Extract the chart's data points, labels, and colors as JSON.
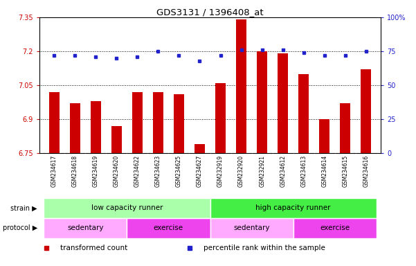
{
  "title": "GDS3131 / 1396408_at",
  "samples": [
    "GSM234617",
    "GSM234618",
    "GSM234619",
    "GSM234620",
    "GSM234622",
    "GSM234623",
    "GSM234625",
    "GSM234627",
    "GSM232919",
    "GSM232920",
    "GSM232921",
    "GSM234612",
    "GSM234613",
    "GSM234614",
    "GSM234615",
    "GSM234616"
  ],
  "bar_values": [
    7.02,
    6.97,
    6.98,
    6.87,
    7.02,
    7.02,
    7.01,
    6.79,
    7.06,
    7.34,
    7.2,
    7.19,
    7.1,
    6.9,
    6.97,
    7.12
  ],
  "dot_values": [
    72,
    72,
    71,
    70,
    71,
    75,
    72,
    68,
    72,
    76,
    76,
    76,
    74,
    72,
    72,
    75
  ],
  "bar_color": "#cc0000",
  "dot_color": "#2222cc",
  "ylim_left": [
    6.75,
    7.35
  ],
  "ylim_right": [
    0,
    100
  ],
  "yticks_left": [
    6.75,
    6.9,
    7.05,
    7.2,
    7.35
  ],
  "yticks_right": [
    0,
    25,
    50,
    75,
    100
  ],
  "ytick_labels_left": [
    "6.75",
    "6.9",
    "7.05",
    "7.2",
    "7.35"
  ],
  "ytick_labels_right": [
    "0",
    "25",
    "50",
    "75",
    "100%"
  ],
  "hlines": [
    6.9,
    7.05,
    7.2
  ],
  "strain_labels": [
    {
      "text": "low capacity runner",
      "start": 0,
      "end": 7,
      "color": "#aaffaa"
    },
    {
      "text": "high capacity runner",
      "start": 8,
      "end": 15,
      "color": "#44ee44"
    }
  ],
  "protocol_labels": [
    {
      "text": "sedentary",
      "start": 0,
      "end": 3,
      "color": "#ffaaff"
    },
    {
      "text": "exercise",
      "start": 4,
      "end": 7,
      "color": "#ee44ee"
    },
    {
      "text": "sedentary",
      "start": 8,
      "end": 11,
      "color": "#ffaaff"
    },
    {
      "text": "exercise",
      "start": 12,
      "end": 15,
      "color": "#ee44ee"
    }
  ],
  "legend_items": [
    {
      "color": "#cc0000",
      "label": "transformed count"
    },
    {
      "color": "#2222cc",
      "label": "percentile rank within the sample"
    }
  ],
  "bar_width": 0.5,
  "sample_bg": "#d8d8d8"
}
